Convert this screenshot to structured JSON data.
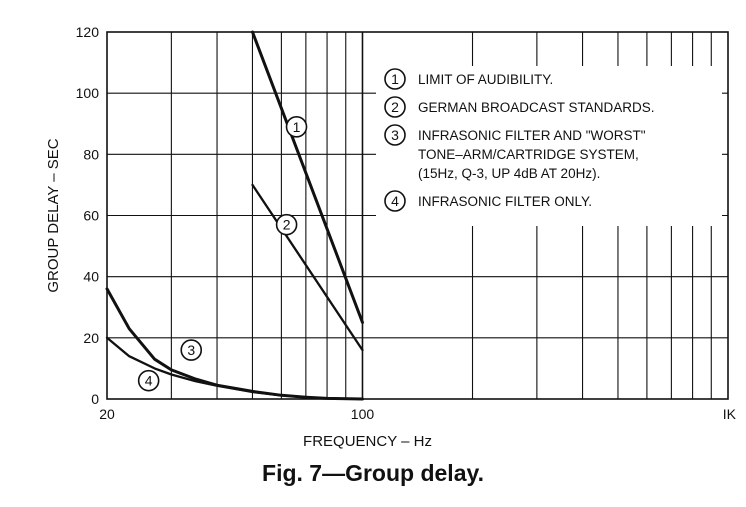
{
  "caption": "Fig. 7—Group delay.",
  "chart_data": {
    "type": "line",
    "xscale": "log",
    "xlim": [
      20,
      1000
    ],
    "ylim": [
      0,
      120
    ],
    "grid": true,
    "xlabel": "FREQUENCY – Hz",
    "ylabel": "GROUP DELAY – SEC",
    "yticks": [
      0,
      20,
      40,
      60,
      80,
      100,
      120
    ],
    "ytick_labels": [
      "0",
      "20",
      "40",
      "60",
      "80",
      "100",
      "120"
    ],
    "xtick_labels": [
      {
        "x": 20,
        "label": "20"
      },
      {
        "x": 100,
        "label": "100"
      },
      {
        "x": 1000,
        "label": "IK"
      }
    ],
    "legend": {
      "placement": "top-right",
      "entries": [
        {
          "marker": "1",
          "lines": [
            "LIMIT OF AUDIBILITY."
          ]
        },
        {
          "marker": "2",
          "lines": [
            "GERMAN BROADCAST STANDARDS."
          ]
        },
        {
          "marker": "3",
          "lines": [
            "INFRASONIC FILTER AND \"WORST\"",
            "TONE–ARM/CARTRIDGE SYSTEM,",
            "(15Hz, Q-3, UP 4dB AT 20Hz)."
          ]
        },
        {
          "marker": "4",
          "lines": [
            "INFRASONIC FILTER ONLY."
          ]
        }
      ]
    },
    "series": [
      {
        "marker": "1",
        "x": [
          50,
          100
        ],
        "y": [
          120,
          25
        ],
        "label_at": [
          66,
          89
        ]
      },
      {
        "marker": "2",
        "x": [
          50,
          100
        ],
        "y": [
          70,
          16
        ],
        "label_at": [
          62,
          57
        ]
      },
      {
        "marker": "3",
        "x": [
          20,
          23,
          27,
          30,
          35,
          40,
          50,
          60,
          70,
          80,
          100
        ],
        "y": [
          36,
          23,
          13,
          9.5,
          6.5,
          4.5,
          2.5,
          1.2,
          0.6,
          0.2,
          0
        ],
        "label_at": [
          34,
          16
        ]
      },
      {
        "marker": "4",
        "x": [
          20,
          23,
          27,
          30,
          35,
          40,
          50,
          60,
          70,
          80,
          100
        ],
        "y": [
          20,
          14,
          10,
          8,
          5.8,
          4.3,
          2.3,
          1.2,
          0.6,
          0.2,
          0
        ],
        "label_at": [
          26,
          6
        ]
      }
    ]
  }
}
